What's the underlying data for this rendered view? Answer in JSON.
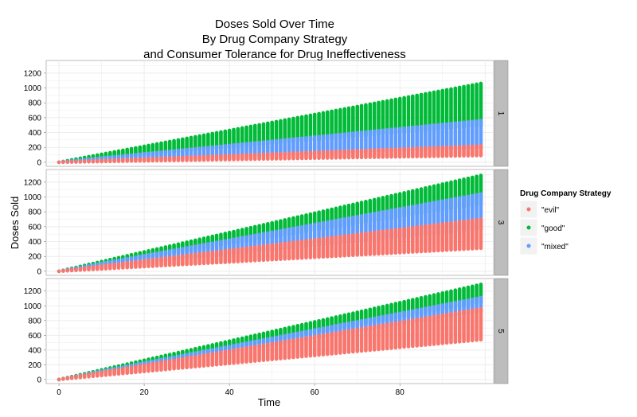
{
  "chart_data": {
    "type": "scatter",
    "title_lines": [
      "Doses Sold Over Time",
      "By Drug Company Strategy",
      "and Consumer Tolerance for Drug Ineffectiveness"
    ],
    "xlabel": "Time",
    "ylabel": "Doses Sold",
    "xlim": [
      -3,
      102
    ],
    "ylim": [
      -55,
      1370
    ],
    "x_ticks": [
      0,
      20,
      40,
      60,
      80
    ],
    "y_ticks": [
      0,
      200,
      400,
      600,
      800,
      1000,
      1200
    ],
    "grid": true,
    "x_range": [
      0,
      99
    ],
    "facet_labels": [
      "1",
      "3",
      "5"
    ],
    "legend": {
      "title": "Drug Company Strategy",
      "position": "right",
      "entries": [
        "\"evil\"",
        "\"good\"",
        "\"mixed\""
      ]
    },
    "colors": {
      "evil": "#F8766D",
      "good": "#00BA38",
      "mixed": "#619CFF",
      "strip_bg": "#bdbdbd",
      "grid": "#ebebeb"
    },
    "panels": [
      {
        "facet": "1",
        "series": [
          {
            "name": "\"good\"",
            "key": "good",
            "y_min_at_end": 490,
            "y_max_at_end": 1060
          },
          {
            "name": "\"mixed\"",
            "key": "mixed",
            "y_min_at_end": 190,
            "y_max_at_end": 560
          },
          {
            "name": "\"evil\"",
            "key": "evil",
            "y_min_at_end": 90,
            "y_max_at_end": 220
          }
        ]
      },
      {
        "facet": "3",
        "series": [
          {
            "name": "\"good\"",
            "key": "good",
            "y_min_at_end": 900,
            "y_max_at_end": 1290
          },
          {
            "name": "\"mixed\"",
            "key": "mixed",
            "y_min_at_end": 560,
            "y_max_at_end": 1040
          },
          {
            "name": "\"evil\"",
            "key": "evil",
            "y_min_at_end": 310,
            "y_max_at_end": 700
          }
        ]
      },
      {
        "facet": "5",
        "series": [
          {
            "name": "\"good\"",
            "key": "good",
            "y_min_at_end": 1040,
            "y_max_at_end": 1290
          },
          {
            "name": "\"mixed\"",
            "key": "mixed",
            "y_min_at_end": 920,
            "y_max_at_end": 1110
          },
          {
            "name": "\"evil\"",
            "key": "evil",
            "y_min_at_end": 540,
            "y_max_at_end": 960
          }
        ]
      }
    ]
  }
}
